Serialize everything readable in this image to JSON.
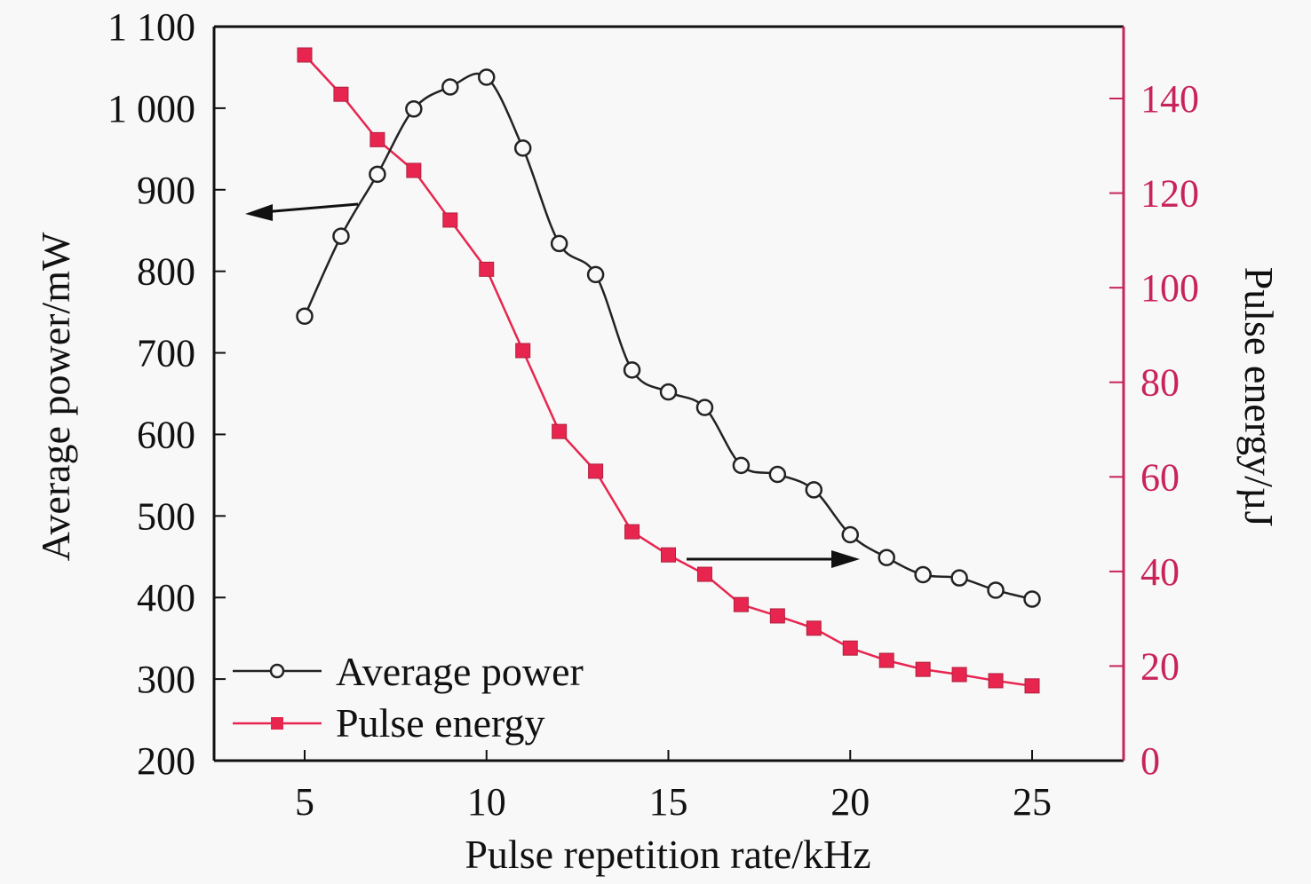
{
  "chart_data": {
    "type": "line",
    "title": "",
    "xlabel": "Pulse repetition rate/kHz",
    "ylabel": "Average power/mW",
    "y2label": "Pulse energy/µJ",
    "xlim": [
      2.5,
      27.5
    ],
    "ylim": [
      200,
      1100
    ],
    "y2lim": [
      0,
      155
    ],
    "xticks": [
      5,
      10,
      15,
      20,
      25
    ],
    "xtick_labels": [
      "5",
      "10",
      "15",
      "20",
      "25"
    ],
    "yticks": [
      200,
      300,
      400,
      500,
      600,
      700,
      800,
      900,
      1000,
      1100
    ],
    "ytick_labels": [
      "200",
      "300",
      "400",
      "500",
      "600",
      "700",
      "800",
      "900",
      "1 000",
      "1 100"
    ],
    "y2ticks": [
      0,
      20,
      40,
      60,
      80,
      100,
      120,
      140
    ],
    "y2tick_labels": [
      "0",
      "20",
      "40",
      "60",
      "80",
      "100",
      "120",
      "140"
    ],
    "grid": false,
    "legend_position": "bottom-left",
    "x": [
      5,
      6,
      7,
      8,
      9,
      10,
      11,
      12,
      13,
      14,
      15,
      16,
      17,
      18,
      19,
      20,
      21,
      22,
      23,
      24,
      25
    ],
    "series": [
      {
        "name": "Average power",
        "axis": "left",
        "marker": "open-circle",
        "color": "#222222",
        "smooth": true,
        "values": [
          745,
          843,
          919,
          999,
          1026,
          1038,
          951,
          834,
          796,
          679,
          652,
          633,
          562,
          551,
          532,
          477,
          449,
          428,
          424,
          409,
          398
        ]
      },
      {
        "name": "Pulse energy",
        "axis": "right",
        "marker": "filled-square",
        "color": "#e8254f",
        "smooth": false,
        "values": [
          149.2,
          140.9,
          131.3,
          124.8,
          114.3,
          103.9,
          86.7,
          69.6,
          61.2,
          48.4,
          43.5,
          39.4,
          33.0,
          30.6,
          28.0,
          23.8,
          21.2,
          19.3,
          18.2,
          16.9,
          15.8
        ]
      }
    ],
    "annotations": [
      {
        "type": "arrow",
        "meaning": "Average power series refers to left axis",
        "direction": "left"
      },
      {
        "type": "arrow",
        "meaning": "Pulse energy series refers to right axis",
        "direction": "right"
      }
    ],
    "colors": {
      "right_axis": "#c8245a",
      "frame": "#111111"
    }
  }
}
